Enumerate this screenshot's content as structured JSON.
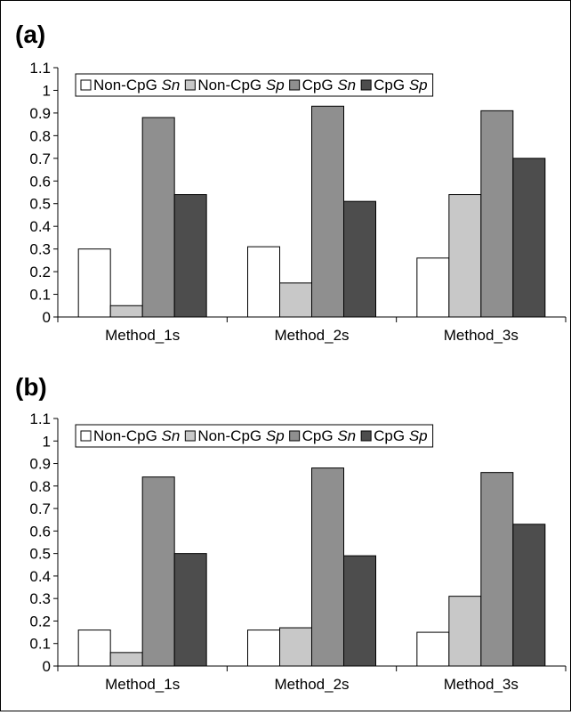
{
  "chart_data": [
    {
      "type": "bar",
      "panel_label": "(a)",
      "categories": [
        "Method_1s",
        "Method_2s",
        "Method_3s"
      ],
      "ylim": [
        0,
        1.1
      ],
      "yticks": [
        "0",
        "0.1",
        "0.2",
        "0.3",
        "0.4",
        "0.5",
        "0.6",
        "0.7",
        "0.8",
        "0.9",
        "1",
        "1.1"
      ],
      "legend_position": "top",
      "series": [
        {
          "name": "Non-CpG Sn",
          "label_main": "Non-CpG ",
          "label_italic": "Sn",
          "color": "#ffffff",
          "values": [
            0.3,
            0.31,
            0.26
          ]
        },
        {
          "name": "Non-CpG Sp",
          "label_main": "Non-CpG ",
          "label_italic": "Sp",
          "color": "#c8c8c8",
          "values": [
            0.05,
            0.15,
            0.54
          ]
        },
        {
          "name": "CpG Sn",
          "label_main": "CpG ",
          "label_italic": "Sn",
          "color": "#8f8f8f",
          "values": [
            0.88,
            0.93,
            0.91
          ]
        },
        {
          "name": "CpG Sp",
          "label_main": "CpG ",
          "label_italic": "Sp",
          "color": "#4d4d4d",
          "values": [
            0.54,
            0.51,
            0.7
          ]
        }
      ]
    },
    {
      "type": "bar",
      "panel_label": "(b)",
      "categories": [
        "Method_1s",
        "Method_2s",
        "Method_3s"
      ],
      "ylim": [
        0,
        1.1
      ],
      "yticks": [
        "0",
        "0.1",
        "0.2",
        "0.3",
        "0.4",
        "0.5",
        "0.6",
        "0.7",
        "0.8",
        "0.9",
        "1",
        "1.1"
      ],
      "legend_position": "top",
      "series": [
        {
          "name": "Non-CpG Sn",
          "label_main": "Non-CpG ",
          "label_italic": "Sn",
          "color": "#ffffff",
          "values": [
            0.16,
            0.16,
            0.15
          ]
        },
        {
          "name": "Non-CpG Sp",
          "label_main": "Non-CpG ",
          "label_italic": "Sp",
          "color": "#c8c8c8",
          "values": [
            0.06,
            0.17,
            0.31
          ]
        },
        {
          "name": "CpG Sn",
          "label_main": "CpG ",
          "label_italic": "Sn",
          "color": "#8f8f8f",
          "values": [
            0.84,
            0.88,
            0.86
          ]
        },
        {
          "name": "CpG Sp",
          "label_main": "CpG ",
          "label_italic": "Sp",
          "color": "#4d4d4d",
          "values": [
            0.5,
            0.49,
            0.63
          ]
        }
      ]
    }
  ]
}
